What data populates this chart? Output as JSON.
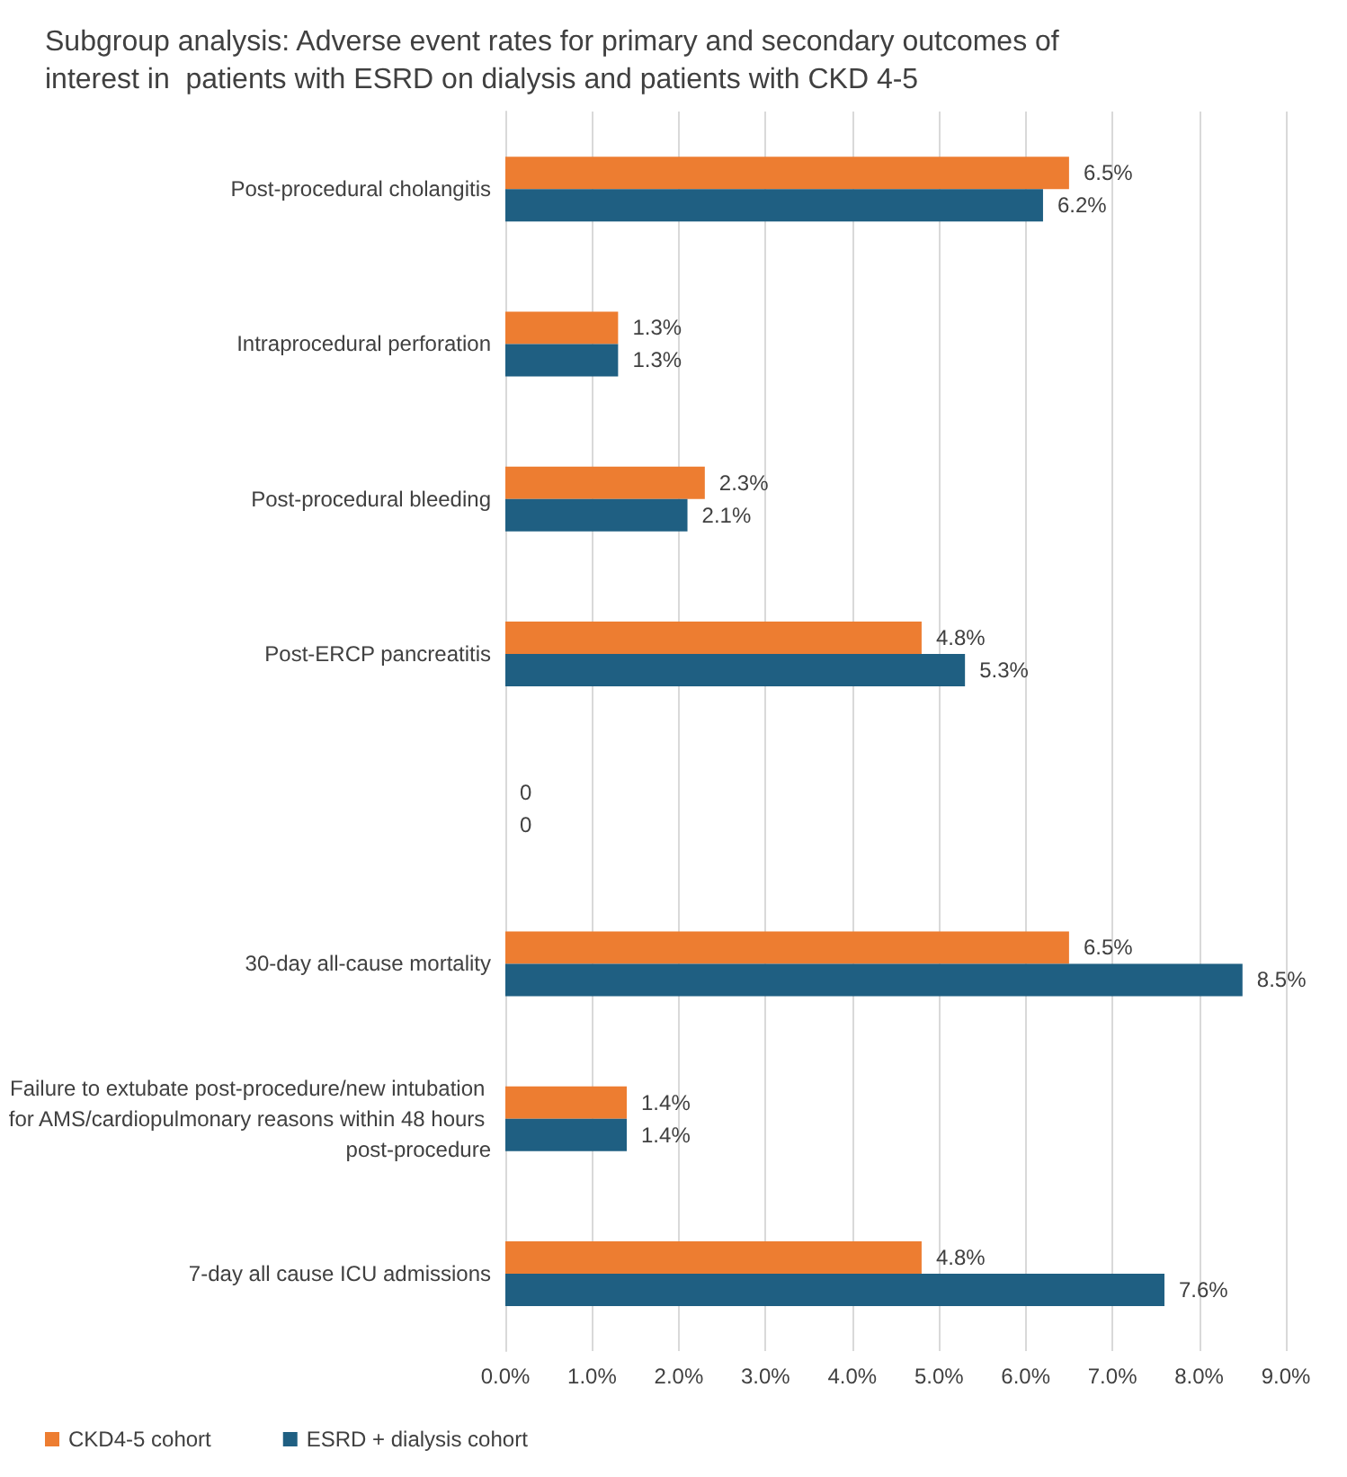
{
  "chart_data": {
    "type": "bar",
    "orientation": "horizontal",
    "title": "Subgroup analysis: Adverse event rates for primary and secondary outcomes of interest in  patients with ESRD on dialysis and patients with CKD 4-5",
    "categories": [
      "Post-procedural cholangitis",
      "Intraprocedural perforation",
      "Post-procedural bleeding",
      "Post-ERCP pancreatitis",
      null,
      "30-day all-cause mortality",
      "Failure to extubate post-procedure/new intubation for AMS/cardiopulmonary reasons within 48 hours post-procedure",
      "7-day all cause ICU admissions"
    ],
    "series": [
      {
        "name": "CKD4-5 cohort",
        "color": "#ed7d31",
        "values": [
          6.5,
          1.3,
          2.3,
          4.8,
          0,
          6.5,
          1.4,
          4.8
        ],
        "value_labels": [
          "6.5%",
          "1.3%",
          "2.3%",
          "4.8%",
          "0",
          "6.5%",
          "1.4%",
          "4.8%"
        ]
      },
      {
        "name": "ESRD + dialysis cohort",
        "color": "#1f5f82",
        "values": [
          6.2,
          1.3,
          2.1,
          5.3,
          0,
          8.5,
          1.4,
          7.6
        ],
        "value_labels": [
          "6.2%",
          "1.3%",
          "2.1%",
          "5.3%",
          "0",
          "8.5%",
          "1.4%",
          "7.6%"
        ]
      }
    ],
    "xlim": [
      0,
      9
    ],
    "xticks": [
      {
        "value": 0,
        "label": "0.0%"
      },
      {
        "value": 1,
        "label": "1.0%"
      },
      {
        "value": 2,
        "label": "2.0%"
      },
      {
        "value": 3,
        "label": "3.0%"
      },
      {
        "value": 4,
        "label": "4.0%"
      },
      {
        "value": 5,
        "label": "5.0%"
      },
      {
        "value": 6,
        "label": "6.0%"
      },
      {
        "value": 7,
        "label": "7.0%"
      },
      {
        "value": 8,
        "label": "8.0%"
      },
      {
        "value": 9,
        "label": "9.0%"
      }
    ],
    "grid": "x",
    "legend": "bottom"
  }
}
